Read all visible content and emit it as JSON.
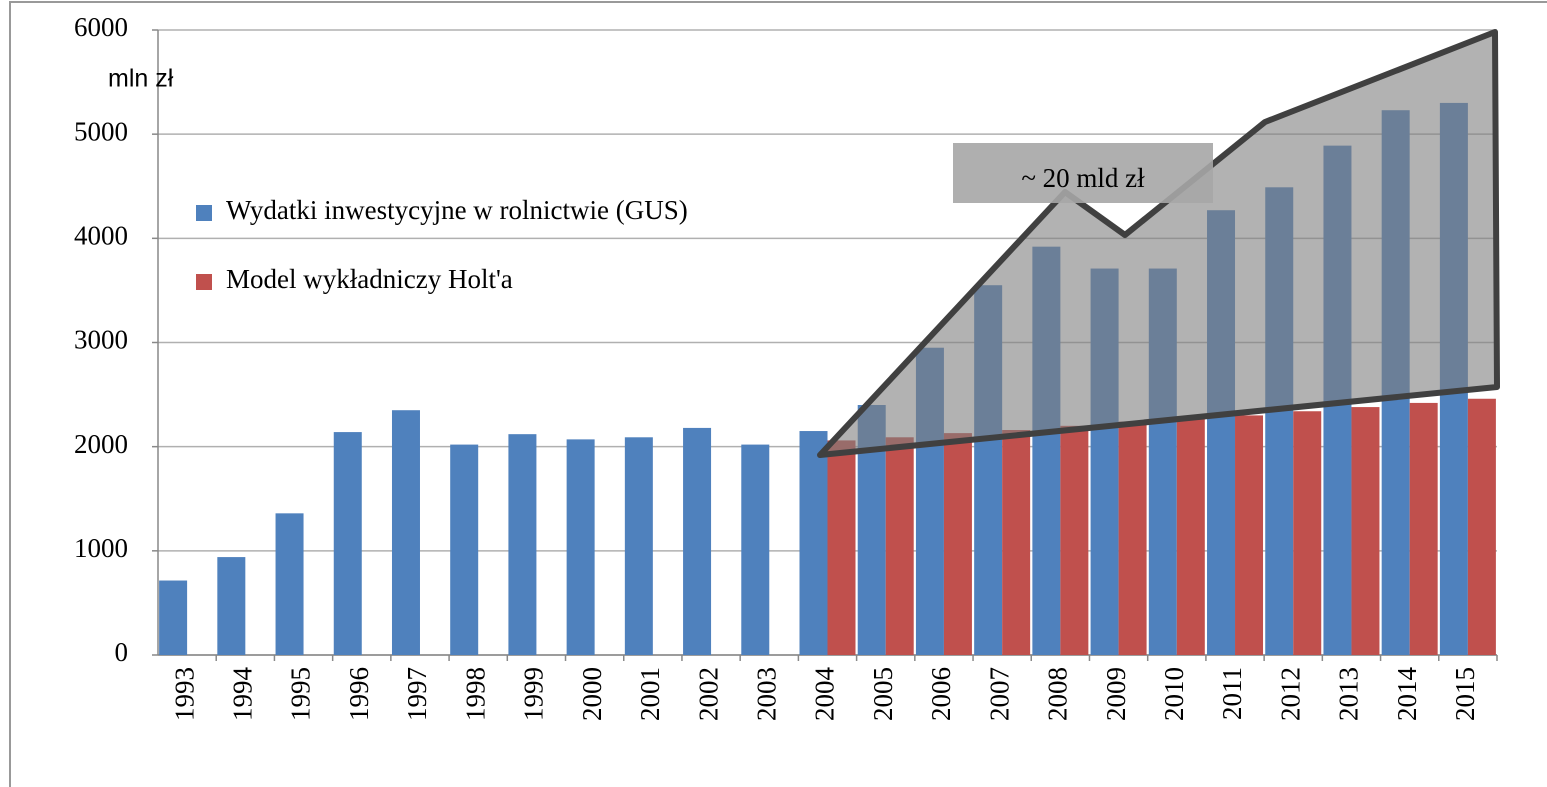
{
  "chart_data": {
    "type": "bar",
    "y_axis_label": "mln zł",
    "categories": [
      "1993",
      "1994",
      "1995",
      "1996",
      "1997",
      "1998",
      "1999",
      "2000",
      "2001",
      "2002",
      "2003",
      "2004",
      "2005",
      "2006",
      "2007",
      "2008",
      "2009",
      "2010",
      "2011",
      "2012",
      "2013",
      "2014",
      "2015"
    ],
    "series": [
      {
        "name": "Wydatki inwestycyjne w rolnictwie (GUS)",
        "color": "#4f81bd",
        "values": [
          715,
          940,
          1360,
          2140,
          2350,
          2020,
          2120,
          2070,
          2090,
          2180,
          2020,
          2150,
          2400,
          2950,
          3550,
          3920,
          3710,
          3710,
          4270,
          4490,
          4890,
          5230,
          5300
        ]
      },
      {
        "name": "Model wykładniczy Holt'a",
        "color": "#c0504d",
        "values": [
          null,
          null,
          null,
          null,
          null,
          null,
          null,
          null,
          null,
          null,
          null,
          2060,
          2090,
          2130,
          2160,
          2200,
          2240,
          2270,
          2300,
          2340,
          2380,
          2420,
          2460
        ]
      }
    ],
    "annotation": "~ 20 mld zł",
    "ylim": [
      0,
      6000
    ],
    "yticks": [
      0,
      1000,
      2000,
      3000,
      4000,
      5000,
      6000
    ],
    "grid": true
  }
}
